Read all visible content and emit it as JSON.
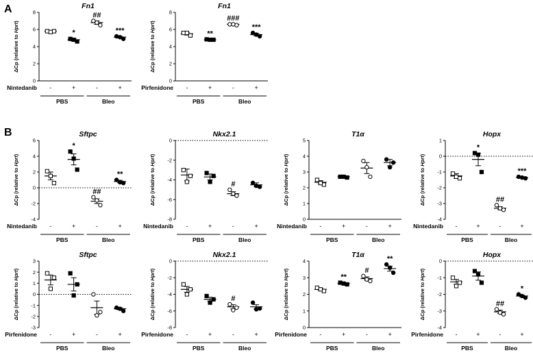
{
  "panel_labels": [
    "A",
    "B"
  ],
  "axis_label": {
    "prefix": "ΔCp (relative to ",
    "gene": "Hprt",
    "suffix": ")"
  },
  "sign_labels": [
    "-",
    "+",
    "-",
    "+"
  ],
  "chart_data": [
    {
      "id": "A1",
      "type": "scatter",
      "title": "Fn1",
      "treatment": "Nintedanib",
      "groups": [
        "PBS",
        "Bleo"
      ],
      "ylim": [
        0,
        8
      ],
      "yticks": [
        0,
        2,
        4,
        6,
        8
      ],
      "zero_line": false,
      "series": [
        {
          "marker": "open-square",
          "points": [
            5.8,
            5.8,
            5.7
          ],
          "mean": 5.8,
          "sem": 0.05,
          "sig": ""
        },
        {
          "marker": "filled-square",
          "points": [
            4.9,
            4.6,
            4.8
          ],
          "mean": 4.8,
          "sem": 0.15,
          "sig": "*"
        },
        {
          "marker": "open-circle",
          "points": [
            7.0,
            6.5,
            6.8
          ],
          "mean": 6.8,
          "sem": 0.2,
          "sig": "##"
        },
        {
          "marker": "filled-circle",
          "points": [
            5.2,
            4.9,
            5.1
          ],
          "mean": 5.1,
          "sem": 0.1,
          "sig": "***"
        }
      ]
    },
    {
      "id": "A2",
      "type": "scatter",
      "title": "Fn1",
      "treatment": "Pirfenidone",
      "groups": [
        "PBS",
        "Bleo"
      ],
      "ylim": [
        0,
        8
      ],
      "yticks": [
        0,
        2,
        4,
        6,
        8
      ],
      "zero_line": false,
      "series": [
        {
          "marker": "open-square",
          "points": [
            5.6,
            5.3,
            5.6
          ],
          "mean": 5.5,
          "sem": 0.15,
          "sig": ""
        },
        {
          "marker": "filled-square",
          "points": [
            4.85,
            4.8,
            4.8
          ],
          "mean": 4.8,
          "sem": 0.05,
          "sig": "**"
        },
        {
          "marker": "open-circle",
          "points": [
            6.6,
            6.5,
            6.6
          ],
          "mean": 6.6,
          "sem": 0.05,
          "sig": "###"
        },
        {
          "marker": "filled-circle",
          "points": [
            5.6,
            5.2,
            5.4
          ],
          "mean": 5.4,
          "sem": 0.15,
          "sig": "***"
        }
      ]
    },
    {
      "id": "B1",
      "type": "scatter",
      "title": "Sftpc",
      "treatment": "Nintedanib",
      "groups": [
        "PBS",
        "Bleo"
      ],
      "ylim": [
        -4,
        6
      ],
      "yticks": [
        -4,
        -2,
        0,
        2,
        4,
        6
      ],
      "zero_line": true,
      "series": [
        {
          "marker": "open-square",
          "points": [
            2.1,
            0.6,
            1.5
          ],
          "mean": 1.5,
          "sem": 0.5,
          "sig": ""
        },
        {
          "marker": "filled-square",
          "points": [
            4.6,
            2.3,
            3.7
          ],
          "mean": 3.6,
          "sem": 0.7,
          "sig": "*"
        },
        {
          "marker": "open-circle",
          "points": [
            -1.2,
            -2.2,
            -1.6
          ],
          "mean": -1.7,
          "sem": 0.3,
          "sig": "##"
        },
        {
          "marker": "filled-circle",
          "points": [
            1.0,
            0.6,
            0.7
          ],
          "mean": 0.8,
          "sem": 0.15,
          "sig": "**"
        }
      ]
    },
    {
      "id": "B2",
      "type": "scatter",
      "title": "Nkx2.1",
      "treatment": "Nintedanib",
      "groups": [
        "PBS",
        "Bleo"
      ],
      "ylim": [
        -8,
        0
      ],
      "yticks": [
        -8,
        -6,
        -4,
        -2,
        0
      ],
      "zero_line": true,
      "series": [
        {
          "marker": "open-square",
          "points": [
            -3.0,
            -3.6,
            -4.2
          ],
          "mean": -3.5,
          "sem": 0.6,
          "sig": ""
        },
        {
          "marker": "filled-square",
          "points": [
            -3.3,
            -3.6,
            -4.2
          ],
          "mean": -3.7,
          "sem": 0.3,
          "sig": ""
        },
        {
          "marker": "open-circle",
          "points": [
            -5.0,
            -5.6,
            -5.4
          ],
          "mean": -5.4,
          "sem": 0.2,
          "sig": "#"
        },
        {
          "marker": "filled-circle",
          "points": [
            -4.3,
            -4.7,
            -4.6
          ],
          "mean": -4.5,
          "sem": 0.2,
          "sig": ""
        }
      ]
    },
    {
      "id": "B3",
      "type": "scatter",
      "title": "T1α",
      "treatment": "Nintedanib",
      "groups": [
        "PBS",
        "Bleo"
      ],
      "ylim": [
        0,
        5
      ],
      "yticks": [
        0,
        1,
        2,
        3,
        4,
        5
      ],
      "zero_line": false,
      "series": [
        {
          "marker": "open-square",
          "points": [
            2.5,
            2.2,
            2.3
          ],
          "mean": 2.35,
          "sem": 0.1,
          "sig": ""
        },
        {
          "marker": "filled-square",
          "points": [
            2.7,
            2.65,
            2.7
          ],
          "mean": 2.7,
          "sem": 0.05,
          "sig": ""
        },
        {
          "marker": "open-circle",
          "points": [
            3.7,
            2.7,
            3.3
          ],
          "mean": 3.25,
          "sem": 0.35,
          "sig": ""
        },
        {
          "marker": "filled-circle",
          "points": [
            3.8,
            3.6,
            3.3
          ],
          "mean": 3.6,
          "sem": 0.2,
          "sig": ""
        }
      ]
    },
    {
      "id": "B4",
      "type": "scatter",
      "title": "Hopx",
      "treatment": "Nintedanib",
      "groups": [
        "PBS",
        "Bleo"
      ],
      "ylim": [
        -4,
        1
      ],
      "yticks": [
        -4,
        -3,
        -2,
        -1,
        0,
        1
      ],
      "zero_line": true,
      "series": [
        {
          "marker": "open-square",
          "points": [
            -1.1,
            -1.4,
            -1.3
          ],
          "mean": -1.25,
          "sem": 0.15,
          "sig": ""
        },
        {
          "marker": "filled-square",
          "points": [
            0.2,
            -1.0,
            0.1
          ],
          "mean": -0.2,
          "sem": 0.4,
          "sig": "*"
        },
        {
          "marker": "open-circle",
          "points": [
            -3.1,
            -3.4,
            -3.3
          ],
          "mean": -3.3,
          "sem": 0.1,
          "sig": "##"
        },
        {
          "marker": "filled-circle",
          "points": [
            -1.3,
            -1.4,
            -1.35
          ],
          "mean": -1.35,
          "sem": 0.05,
          "sig": "***"
        }
      ]
    },
    {
      "id": "B5",
      "type": "scatter",
      "title": "Sftpc",
      "treatment": "Pirfenidone",
      "groups": [
        "PBS",
        "Bleo"
      ],
      "ylim": [
        -3,
        3
      ],
      "yticks": [
        -3,
        -2,
        -1,
        0,
        1,
        2,
        3
      ],
      "zero_line": true,
      "series": [
        {
          "marker": "open-square",
          "points": [
            1.9,
            1.5,
            0.5
          ],
          "mean": 1.3,
          "sem": 0.45,
          "sig": ""
        },
        {
          "marker": "filled-square",
          "points": [
            1.9,
            0.9,
            -0.1
          ],
          "mean": 0.9,
          "sem": 0.6,
          "sig": ""
        },
        {
          "marker": "open-circle",
          "points": [
            0.0,
            -1.6,
            -1.9
          ],
          "mean": -1.2,
          "sem": 0.6,
          "sig": ""
        },
        {
          "marker": "filled-circle",
          "points": [
            -1.2,
            -1.5,
            -1.3
          ],
          "mean": -1.3,
          "sem": 0.1,
          "sig": ""
        }
      ]
    },
    {
      "id": "B6",
      "type": "scatter",
      "title": "Nkx2.1",
      "treatment": "Pirfenidone",
      "groups": [
        "PBS",
        "Bleo"
      ],
      "ylim": [
        -8,
        0
      ],
      "yticks": [
        -8,
        -6,
        -4,
        -2,
        0
      ],
      "zero_line": true,
      "series": [
        {
          "marker": "open-square",
          "points": [
            -2.8,
            -3.4,
            -4.0
          ],
          "mean": -3.4,
          "sem": 0.35,
          "sig": ""
        },
        {
          "marker": "filled-square",
          "points": [
            -4.2,
            -4.6,
            -5.0
          ],
          "mean": -4.6,
          "sem": 0.25,
          "sig": ""
        },
        {
          "marker": "open-circle",
          "points": [
            -5.2,
            -5.6,
            -5.9
          ],
          "mean": -5.5,
          "sem": 0.25,
          "sig": "#"
        },
        {
          "marker": "filled-circle",
          "points": [
            -5.0,
            -5.7,
            -5.8
          ],
          "mean": -5.5,
          "sem": 0.25,
          "sig": ""
        }
      ]
    },
    {
      "id": "B7",
      "type": "scatter",
      "title": "T1α",
      "treatment": "Pirfenidone",
      "groups": [
        "PBS",
        "Bleo"
      ],
      "ylim": [
        0,
        4
      ],
      "yticks": [
        0,
        1,
        2,
        3,
        4
      ],
      "zero_line": false,
      "series": [
        {
          "marker": "open-square",
          "points": [
            2.4,
            2.2,
            2.3
          ],
          "mean": 2.3,
          "sem": 0.05,
          "sig": ""
        },
        {
          "marker": "filled-square",
          "points": [
            2.7,
            2.6,
            2.65
          ],
          "mean": 2.65,
          "sem": 0.05,
          "sig": "**"
        },
        {
          "marker": "open-circle",
          "points": [
            3.1,
            2.8,
            2.9
          ],
          "mean": 2.95,
          "sem": 0.1,
          "sig": "#"
        },
        {
          "marker": "filled-circle",
          "points": [
            3.8,
            3.3,
            3.6
          ],
          "mean": 3.55,
          "sem": 0.15,
          "sig": "**"
        }
      ]
    },
    {
      "id": "B8",
      "type": "scatter",
      "title": "Hopx",
      "treatment": "Pirfenidone",
      "groups": [
        "PBS",
        "Bleo"
      ],
      "ylim": [
        -4,
        0
      ],
      "yticks": [
        -4,
        -3,
        -2,
        -1,
        0
      ],
      "zero_line": true,
      "series": [
        {
          "marker": "open-square",
          "points": [
            -1.0,
            -1.3,
            -1.5
          ],
          "mean": -1.25,
          "sem": 0.15,
          "sig": ""
        },
        {
          "marker": "filled-square",
          "points": [
            -0.6,
            -1.3,
            -0.8
          ],
          "mean": -0.9,
          "sem": 0.25,
          "sig": ""
        },
        {
          "marker": "open-circle",
          "points": [
            -2.9,
            -3.2,
            -3.1
          ],
          "mean": -3.05,
          "sem": 0.1,
          "sig": "##"
        },
        {
          "marker": "filled-circle",
          "points": [
            -2.0,
            -2.2,
            -2.1
          ],
          "mean": -2.1,
          "sem": 0.05,
          "sig": "*"
        }
      ]
    }
  ]
}
